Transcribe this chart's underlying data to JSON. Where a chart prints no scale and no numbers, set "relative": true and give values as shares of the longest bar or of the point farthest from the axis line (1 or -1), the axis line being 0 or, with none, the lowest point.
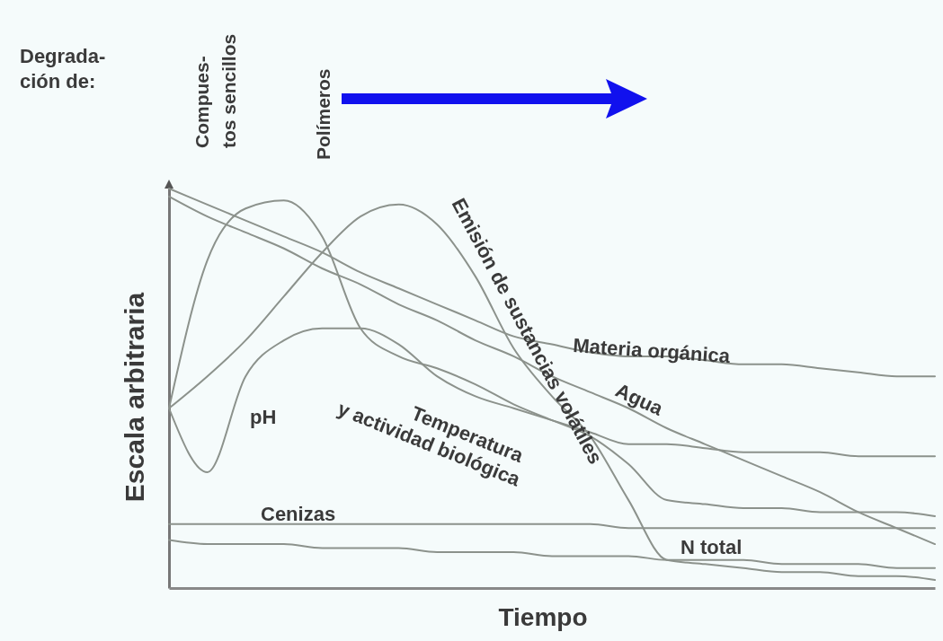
{
  "chart_data": {
    "type": "line",
    "relative": true,
    "xlabel": "Tiempo",
    "ylabel": "Escala arbitraria",
    "annotations": [
      "Degrada-\nción de:",
      "Compues-\ntos sencillos",
      "Polímeros"
    ],
    "categories": [
      null,
      null,
      null,
      null,
      null,
      null,
      null,
      null,
      null,
      null,
      null,
      null,
      null,
      null,
      null,
      null,
      null,
      null,
      null,
      null,
      null
    ],
    "series": [
      {
        "name": "Materia orgánica",
        "color": "#8c928c",
        "values": [
          1.0,
          0.96,
          0.92,
          0.88,
          0.84,
          0.79,
          0.75,
          0.71,
          0.67,
          0.63,
          0.61,
          0.59,
          0.58,
          0.58,
          0.57,
          0.56,
          0.56,
          0.55,
          0.54,
          0.53,
          0.53
        ]
      },
      {
        "name": "Agua",
        "color": "#8c928c",
        "values": [
          0.98,
          0.93,
          0.89,
          0.85,
          0.8,
          0.76,
          0.71,
          0.67,
          0.62,
          0.58,
          0.53,
          0.49,
          0.45,
          0.4,
          0.36,
          0.32,
          0.28,
          0.24,
          0.19,
          0.15,
          0.11
        ]
      },
      {
        "name": "Cenizas",
        "color": "#8c928c",
        "values": [
          0.16,
          0.16,
          0.16,
          0.16,
          0.16,
          0.16,
          0.16,
          0.16,
          0.16,
          0.16,
          0.16,
          0.16,
          0.15,
          0.15,
          0.15,
          0.15,
          0.15,
          0.15,
          0.15,
          0.15,
          0.15
        ]
      },
      {
        "name": "N total",
        "color": "#8c928c",
        "values": [
          0.12,
          0.11,
          0.11,
          0.11,
          0.1,
          0.1,
          0.1,
          0.09,
          0.09,
          0.09,
          0.08,
          0.08,
          0.08,
          0.07,
          0.07,
          0.07,
          0.06,
          0.06,
          0.06,
          0.05,
          0.05
        ]
      },
      {
        "name": "Emisión de sustancias volátiles",
        "color": "#8c928c",
        "values": [
          0.45,
          0.53,
          0.62,
          0.73,
          0.84,
          0.93,
          0.96,
          0.91,
          0.78,
          0.6,
          0.48,
          0.38,
          0.22,
          0.07,
          0.06,
          0.05,
          0.04,
          0.04,
          0.03,
          0.03,
          0.02
        ]
      },
      {
        "name": "Temperatura y actividad biológica",
        "color": "#8c928c",
        "values": [
          0.45,
          0.82,
          0.95,
          0.97,
          0.88,
          0.65,
          0.58,
          0.55,
          0.51,
          0.46,
          0.42,
          0.38,
          0.31,
          0.22,
          0.21,
          0.2,
          0.2,
          0.19,
          0.19,
          0.19,
          0.18
        ]
      },
      {
        "name": "pH",
        "color": "#8c928c",
        "values": [
          0.45,
          0.29,
          0.53,
          0.62,
          0.65,
          0.65,
          0.61,
          0.53,
          0.48,
          0.45,
          0.42,
          0.39,
          0.36,
          0.36,
          0.35,
          0.34,
          0.34,
          0.34,
          0.33,
          0.33,
          0.33
        ]
      }
    ]
  }
}
